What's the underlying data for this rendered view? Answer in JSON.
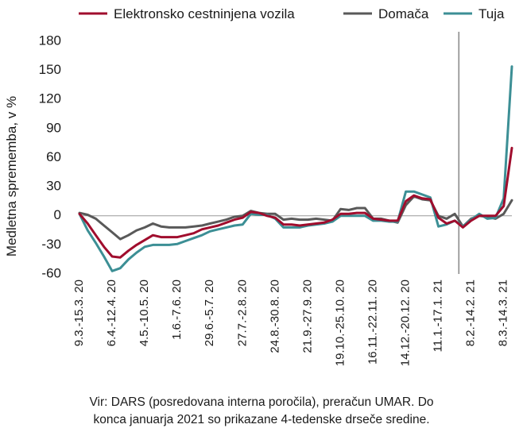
{
  "chart_data": {
    "type": "line",
    "ylabel": "Medletna sprememba, v %",
    "ylim": [
      -60,
      180
    ],
    "yticks": [
      -60,
      -30,
      0,
      30,
      60,
      90,
      120,
      150,
      180
    ],
    "x_tick_labels": [
      "9.3.-15.3. 20",
      "6.4.-12.4. 20",
      "4.5.-10.5. 20",
      "1.6.-7.6. 20",
      "29.6.-5.7. 20",
      "27.7.-2.8. 20",
      "24.8.-30.8. 20",
      "21.9.-27.9. 20",
      "19.10.-25.10. 20",
      "16.11.-22.11. 20",
      "14.12.-20.12. 20",
      "11.1.-17.1. 21",
      "8.2.-14.2. 21",
      "8.3.-14.3. 21"
    ],
    "x_tick_week_index": [
      0,
      4,
      8,
      12,
      16,
      20,
      24,
      28,
      32,
      36,
      40,
      44,
      48,
      52
    ],
    "vertical_marker_week_index": 46.5,
    "legend_position": "top",
    "series": [
      {
        "name": "Elektronsko cestninjena vozila",
        "color": "#a00d2d",
        "values": [
          2,
          -8,
          -20,
          -32,
          -42,
          -43,
          -36,
          -30,
          -25,
          -20,
          -22,
          -22,
          -22,
          -20,
          -18,
          -14,
          -12,
          -10,
          -7,
          -4,
          -2,
          4,
          3,
          0,
          -2,
          -9,
          -9,
          -10,
          -9,
          -8,
          -7,
          -4,
          2,
          2,
          3,
          3,
          -3,
          -4,
          -5,
          -5,
          15,
          21,
          18,
          17,
          -2,
          -8,
          -5,
          -12,
          -5,
          0,
          0,
          0,
          10,
          70
        ]
      },
      {
        "name": "Domača",
        "color": "#595959",
        "values": [
          3,
          1,
          -3,
          -10,
          -17,
          -24,
          -20,
          -15,
          -12,
          -8,
          -11,
          -12,
          -12,
          -12,
          -11,
          -10,
          -8,
          -6,
          -4,
          -1,
          0,
          5,
          3,
          2,
          2,
          -4,
          -3,
          -4,
          -4,
          -3,
          -4,
          -5,
          7,
          6,
          8,
          8,
          -3,
          -3,
          -5,
          -7,
          11,
          20,
          17,
          16,
          0,
          -3,
          2,
          -11,
          -3,
          0,
          -1,
          -3,
          2,
          16
        ]
      },
      {
        "name": "Tuja",
        "color": "#3c8f95",
        "values": [
          2,
          -15,
          -28,
          -42,
          -57,
          -54,
          -45,
          -38,
          -32,
          -30,
          -30,
          -30,
          -29,
          -26,
          -23,
          -20,
          -16,
          -14,
          -12,
          -10,
          -9,
          2,
          1,
          1,
          -3,
          -12,
          -12,
          -12,
          -10,
          -9,
          -8,
          -6,
          0,
          0,
          0,
          0,
          -5,
          -5,
          -6,
          -6,
          25,
          25,
          22,
          19,
          -11,
          -9,
          -5,
          -11,
          -4,
          2,
          -3,
          -2,
          18,
          154
        ]
      }
    ]
  },
  "source_note": {
    "line1": "Vir: DARS (posredovana interna poročila), preračun UMAR. Do",
    "line2": "konca januarja 2021 so prikazane 4-tedenske drseče sredine."
  }
}
